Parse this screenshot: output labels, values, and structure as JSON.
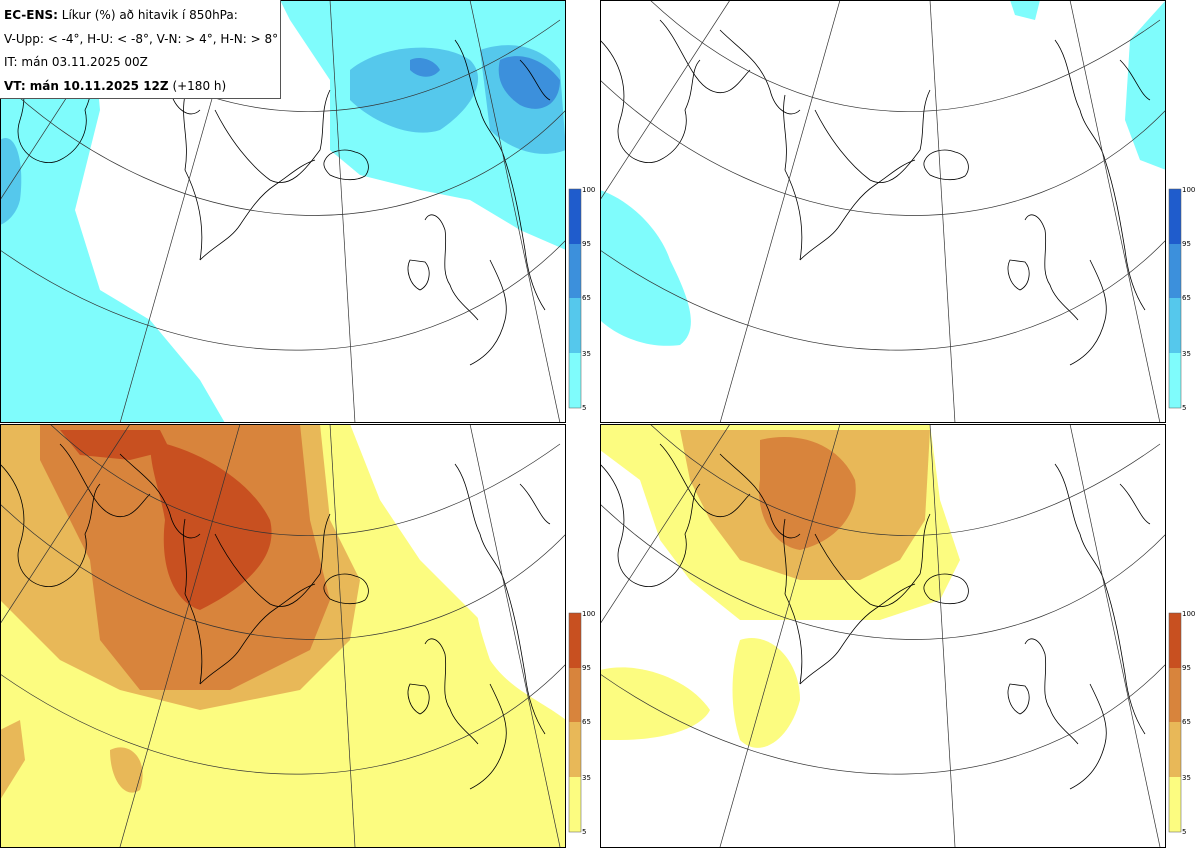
{
  "header": {
    "line1_bold": "EC-ENS:",
    "line1_rest": "Líkur (%) að hitavik í 850hPa:",
    "line2": "V-Upp: < -4°, H-U: < -8°, V-N: > 4°, H-N: > 8°",
    "line3": "IT: mán 03.11.2025 00Z",
    "line4_bold": "VT: mán 10.11.2025 12Z",
    "line4_rest": "(+180 h)"
  },
  "panels": [
    {
      "id": "V-Upp",
      "scale": "cold",
      "colorbar_ticks": [
        "100",
        "95",
        "65",
        "35",
        "5"
      ]
    },
    {
      "id": "H-U",
      "scale": "cold",
      "colorbar_ticks": [
        "100",
        "95",
        "65",
        "35",
        "5"
      ]
    },
    {
      "id": "V-N",
      "scale": "warm",
      "colorbar_ticks": [
        "100",
        "95",
        "65",
        "35",
        "5"
      ]
    },
    {
      "id": "H-N",
      "scale": "warm",
      "colorbar_ticks": [
        "100",
        "95",
        "65",
        "35",
        "5"
      ]
    }
  ],
  "colors": {
    "cold": [
      "#7ffcfc",
      "#55c8ec",
      "#3c90dc",
      "#1f5ccc"
    ],
    "warm": [
      "#fcfc80",
      "#e8b858",
      "#d8843c",
      "#c85020"
    ]
  }
}
